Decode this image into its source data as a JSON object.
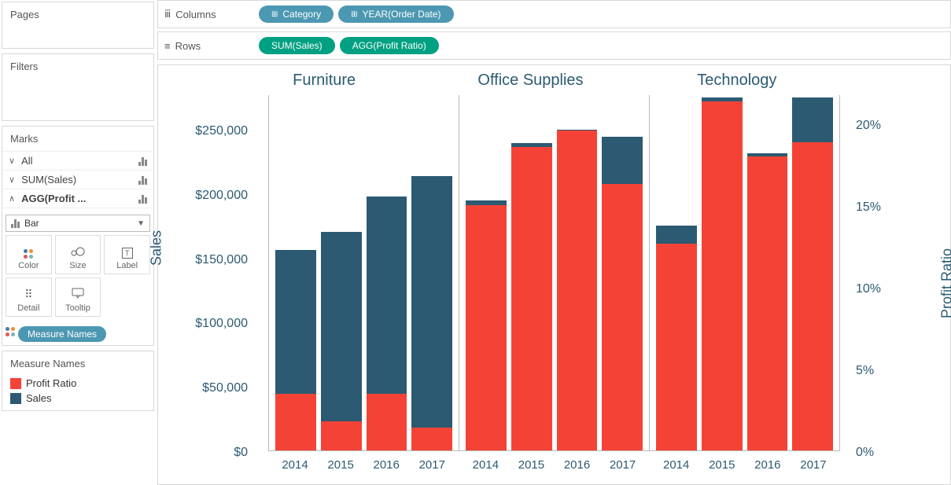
{
  "sidebar": {
    "pages_label": "Pages",
    "filters_label": "Filters",
    "marks_label": "Marks",
    "all_label": "All",
    "sum_sales_label": "SUM(Sales)",
    "agg_profit_label": "AGG(Profit ...",
    "bar_label": "Bar",
    "mark_buttons": {
      "color": "Color",
      "size": "Size",
      "label": "Label",
      "detail": "Detail",
      "tooltip": "Tooltip"
    },
    "measure_names_pill": "Measure Names",
    "legend": {
      "title": "Measure Names",
      "items": [
        {
          "label": "Profit Ratio",
          "color": "#f44336"
        },
        {
          "label": "Sales",
          "color": "#2c5a72"
        }
      ]
    }
  },
  "shelves": {
    "columns_label": "Columns",
    "rows_label": "Rows",
    "columns": [
      {
        "label": "Category",
        "icon": "⊞"
      },
      {
        "label": "YEAR(Order Date)",
        "icon": "⊞"
      }
    ],
    "rows": [
      {
        "label": "SUM(Sales)"
      },
      {
        "label": "AGG(Profit Ratio)"
      }
    ]
  },
  "chart": {
    "type": "stacked-bar-dual-axis",
    "categories": [
      "Furniture",
      "Office Supplies",
      "Technology"
    ],
    "years": [
      "2014",
      "2015",
      "2016",
      "2017"
    ],
    "y_left_label": "Sales",
    "y_right_label": "Profit Ratio",
    "colors": {
      "sales": "#2c5a72",
      "profit_ratio": "#f44336",
      "axis_text": "#2c5a72",
      "grid": "#bbbbbb"
    },
    "y_left": {
      "ticks": [
        "$0",
        "$50,000",
        "$100,000",
        "$150,000",
        "$200,000",
        "$250,000"
      ],
      "max": 280000
    },
    "y_right": {
      "ticks": [
        "0%",
        "5%",
        "10%",
        "15%",
        "20%"
      ],
      "max": 0.22
    },
    "data": {
      "Furniture": {
        "2014": {
          "sales": 158000,
          "profit_ratio": 0.035
        },
        "2015": {
          "sales": 172000,
          "profit_ratio": 0.018
        },
        "2016": {
          "sales": 200000,
          "profit_ratio": 0.035
        },
        "2017": {
          "sales": 216000,
          "profit_ratio": 0.014
        }
      },
      "Office Supplies": {
        "2014": {
          "sales": 197000,
          "profit_ratio": 0.152
        },
        "2015": {
          "sales": 242000,
          "profit_ratio": 0.188
        },
        "2016": {
          "sales": 253000,
          "profit_ratio": 0.198
        },
        "2017": {
          "sales": 247000,
          "profit_ratio": 0.165
        }
      },
      "Technology": {
        "2014": {
          "sales": 177000,
          "profit_ratio": 0.128
        },
        "2015": {
          "sales": 278000,
          "profit_ratio": 0.216
        },
        "2016": {
          "sales": 234000,
          "profit_ratio": 0.182
        },
        "2017": {
          "sales": 278000,
          "profit_ratio": 0.191
        }
      }
    }
  }
}
